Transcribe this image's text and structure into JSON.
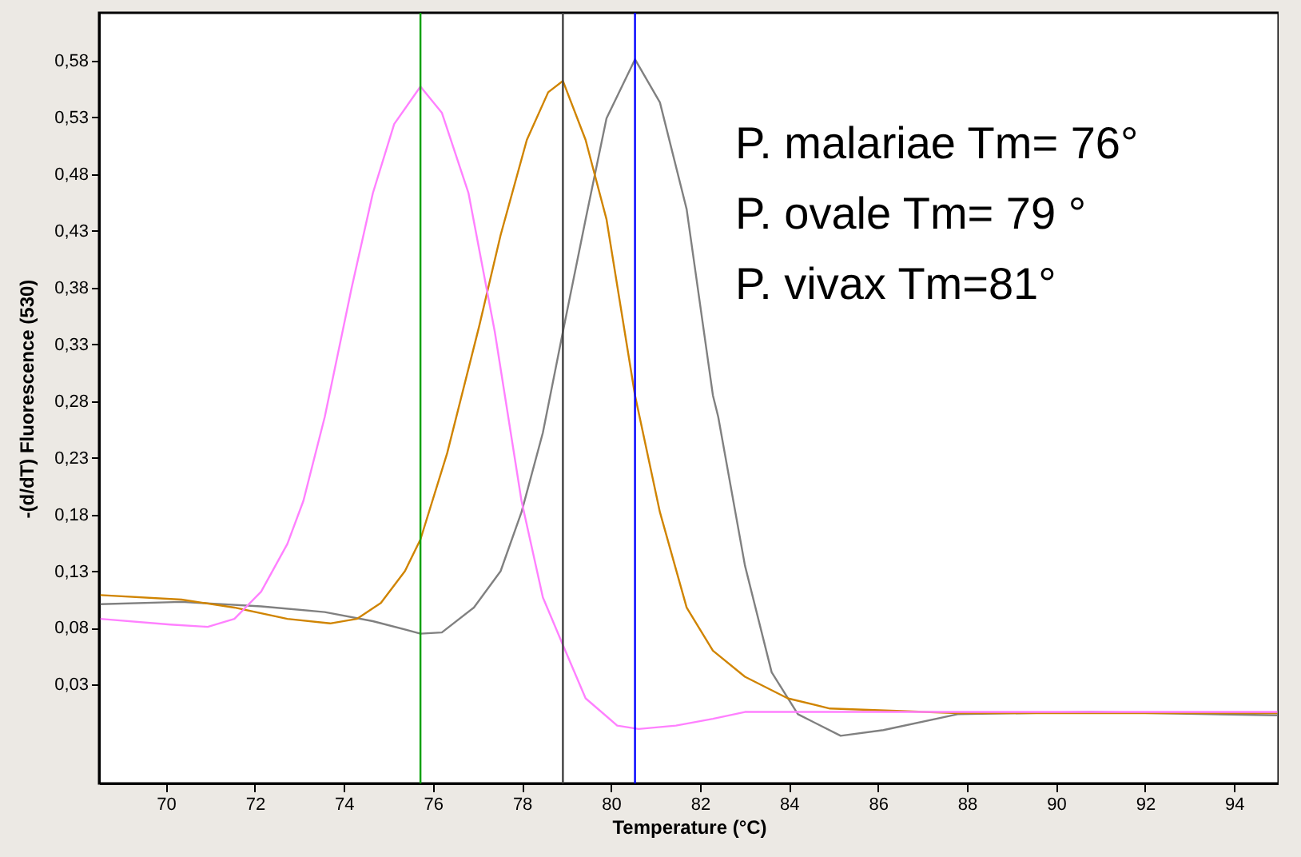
{
  "chart_data": {
    "type": "line",
    "xlabel": "Temperature (°C)",
    "ylabel": "-(d/dT) Fluorescence (530)",
    "xlim": [
      68.5,
      95
    ],
    "ylim": [
      -0.057,
      0.622
    ],
    "xticks": [
      70,
      72,
      74,
      76,
      78,
      80,
      82,
      84,
      86,
      88,
      90,
      92,
      94
    ],
    "yticks": [
      {
        "value": 0.03,
        "label": "0,03"
      },
      {
        "value": 0.08,
        "label": "0,08"
      },
      {
        "value": 0.13,
        "label": "0,13"
      },
      {
        "value": 0.18,
        "label": "0,18"
      },
      {
        "value": 0.23,
        "label": "0,23"
      },
      {
        "value": 0.28,
        "label": "0,28"
      },
      {
        "value": 0.33,
        "label": "0,33"
      },
      {
        "value": 0.38,
        "label": "0,38"
      },
      {
        "value": 0.43,
        "label": "0,43"
      },
      {
        "value": 0.48,
        "label": "0,48"
      },
      {
        "value": 0.53,
        "label": "0,53"
      },
      {
        "value": 0.58,
        "label": "0,58"
      }
    ],
    "grid": false,
    "legend": false,
    "series": [
      {
        "color": "#808080",
        "x": [
          68.53,
          70.35,
          72.14,
          73.57,
          74.65,
          75.72,
          76.2,
          76.92,
          77.52,
          77.99,
          78.47,
          78.92,
          79.43,
          79.9,
          80.54,
          81.1,
          81.7,
          82.29,
          82.41,
          83.01,
          83.61,
          84.2,
          85.16,
          86.12,
          87.79,
          90.78,
          94.97
        ],
        "values": [
          0.101,
          0.103,
          0.099,
          0.094,
          0.086,
          0.075,
          0.076,
          0.098,
          0.13,
          0.182,
          0.252,
          0.341,
          0.44,
          0.529,
          0.581,
          0.543,
          0.449,
          0.285,
          0.266,
          0.135,
          0.041,
          0.004,
          -0.015,
          -0.01,
          0.004,
          0.006,
          0.003
        ]
      },
      {
        "color": "#d08400",
        "x": [
          68.53,
          70.35,
          71.54,
          72.73,
          73.69,
          74.29,
          74.83,
          75.37,
          75.72,
          76.32,
          77.04,
          77.52,
          78.11,
          78.59,
          78.92,
          79.43,
          79.9,
          80.54,
          81.1,
          81.7,
          82.29,
          83.01,
          83.97,
          84.92,
          87.79,
          94.97
        ],
        "values": [
          0.109,
          0.105,
          0.098,
          0.088,
          0.084,
          0.088,
          0.102,
          0.13,
          0.158,
          0.234,
          0.346,
          0.426,
          0.51,
          0.552,
          0.562,
          0.51,
          0.44,
          0.285,
          0.182,
          0.098,
          0.06,
          0.037,
          0.018,
          0.009,
          0.005,
          0.005
        ]
      },
      {
        "color": "#ff80ff",
        "x": [
          68.53,
          70.1,
          70.94,
          71.54,
          72.14,
          72.73,
          73.09,
          73.57,
          74.17,
          74.65,
          75.13,
          75.72,
          76.2,
          76.8,
          77.39,
          77.99,
          78.47,
          78.92,
          79.43,
          80.14,
          80.62,
          81.46,
          82.29,
          83.01,
          86.6,
          94.97
        ],
        "values": [
          0.088,
          0.083,
          0.081,
          0.088,
          0.112,
          0.154,
          0.192,
          0.266,
          0.379,
          0.463,
          0.524,
          0.557,
          0.534,
          0.463,
          0.341,
          0.192,
          0.107,
          0.065,
          0.018,
          -0.006,
          -0.009,
          -0.006,
          0.0,
          0.006,
          0.006,
          0.006
        ]
      }
    ],
    "ref_lines": [
      {
        "axis": "x",
        "value": 75.72,
        "color": "#00a000"
      },
      {
        "axis": "x",
        "value": 78.92,
        "color": "#404040"
      },
      {
        "axis": "x",
        "value": 80.54,
        "color": "#0000ff"
      }
    ],
    "annotations": [
      "P. malariae Tm= 76°",
      "P. ovale  Tm= 79 °",
      "P. vivax  Tm=81°"
    ]
  }
}
